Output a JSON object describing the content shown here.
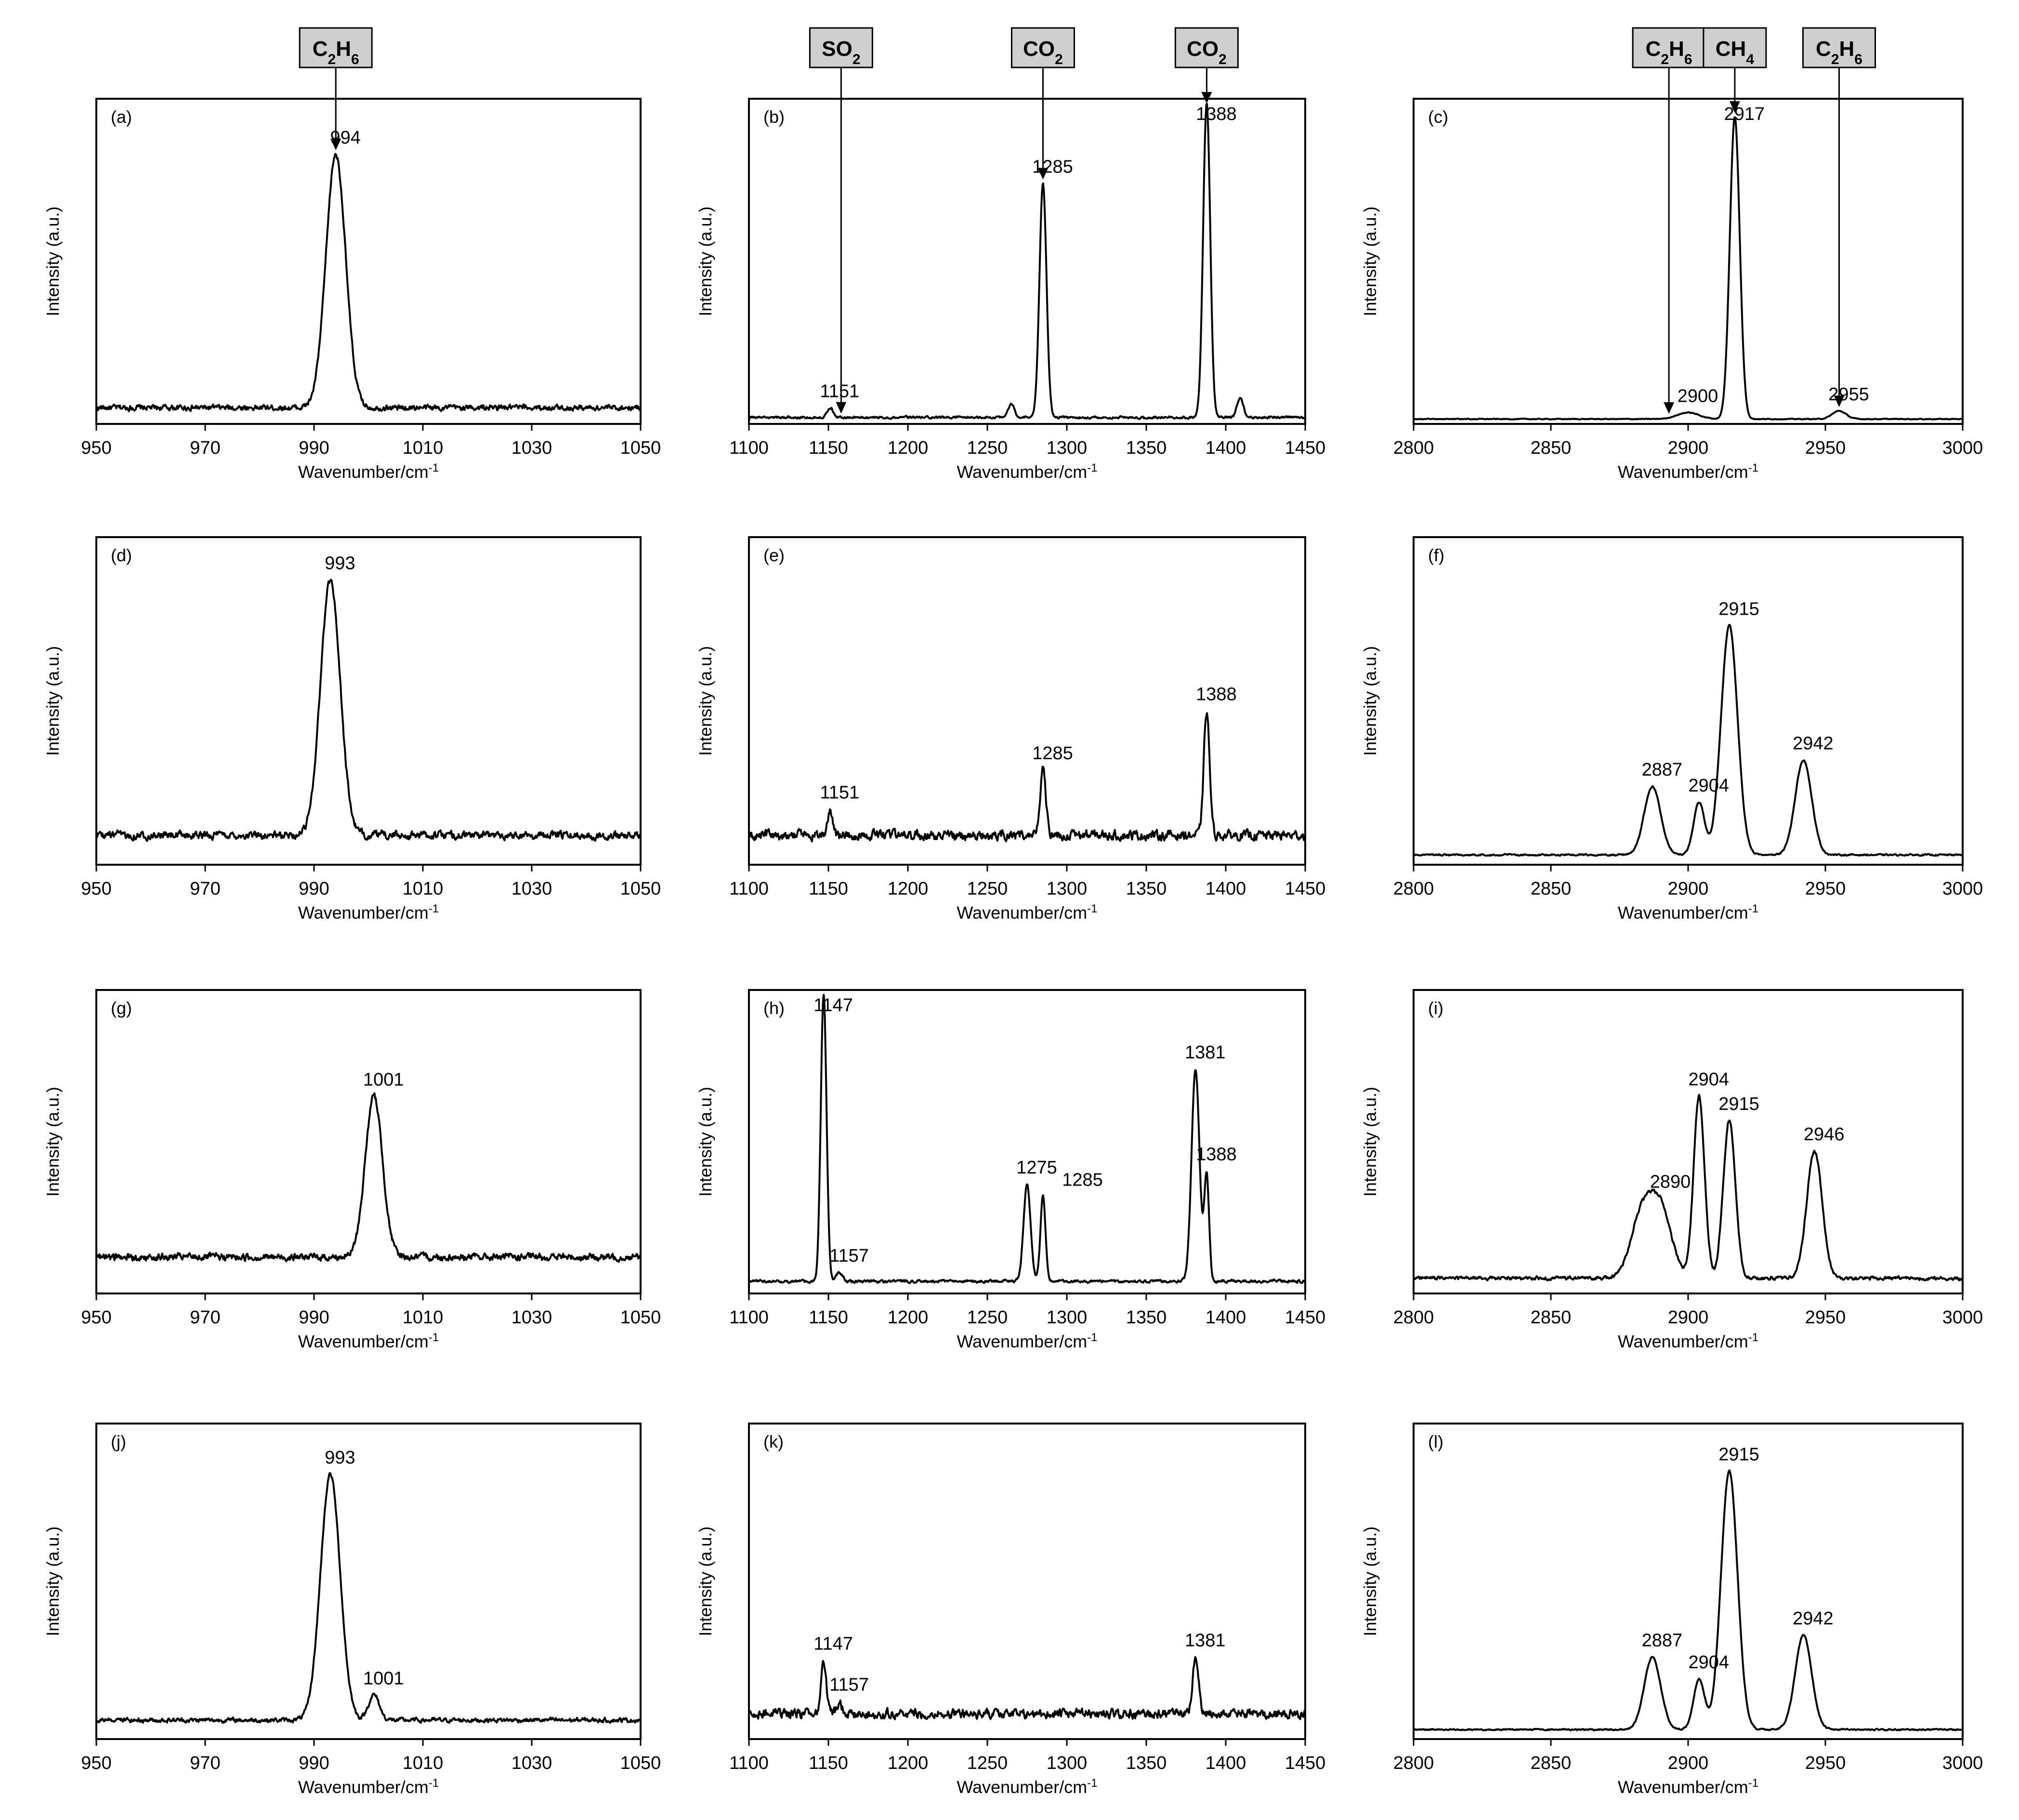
{
  "chart_data": [
    {
      "id": "a",
      "type": "line",
      "panel_label": "(a)",
      "xlim": [
        950,
        1050
      ],
      "xticks": [
        950,
        970,
        990,
        1010,
        1030,
        1050
      ],
      "xlabel": "Wavenumber/cm",
      "xlabel_sup": "-1",
      "ylabel": "Intensity (a.u.)",
      "ylim": [
        0,
        1
      ],
      "peaks": [
        {
          "x": 994,
          "h": 0.78,
          "w": 1.8
        }
      ],
      "baseline": 0.05,
      "noise": 0.015,
      "annotations": [
        {
          "x": 994,
          "label": "994"
        }
      ],
      "markers": [
        {
          "x": 994,
          "text": "C",
          "sub": "2",
          "text2": "H",
          "sub2": "6"
        }
      ]
    },
    {
      "id": "b",
      "type": "line",
      "panel_label": "(b)",
      "xlim": [
        1100,
        1450
      ],
      "xticks": [
        1100,
        1150,
        1200,
        1250,
        1300,
        1350,
        1400,
        1450
      ],
      "xlabel": "Wavenumber/cm",
      "xlabel_sup": "-1",
      "ylabel": "Intensity (a.u.)",
      "ylim": [
        0,
        1
      ],
      "peaks": [
        {
          "x": 1151,
          "h": 0.03,
          "w": 2
        },
        {
          "x": 1265,
          "h": 0.04,
          "w": 2
        },
        {
          "x": 1285,
          "h": 0.72,
          "w": 2.2
        },
        {
          "x": 1388,
          "h": 0.97,
          "w": 2.2
        },
        {
          "x": 1409,
          "h": 0.06,
          "w": 2
        }
      ],
      "baseline": 0.02,
      "noise": 0.006,
      "annotations": [
        {
          "x": 1151,
          "label": "1151"
        },
        {
          "x": 1285,
          "label": "1285"
        },
        {
          "x": 1388,
          "label": "1388"
        }
      ],
      "markers": [
        {
          "x": 1158,
          "text": "SO",
          "sub": "2"
        },
        {
          "x": 1285,
          "text": "CO",
          "sub": "2"
        },
        {
          "x": 1388,
          "text": "CO",
          "sub": "2"
        }
      ]
    },
    {
      "id": "c",
      "type": "line",
      "panel_label": "(c)",
      "xlim": [
        2800,
        3000
      ],
      "xticks": [
        2800,
        2850,
        2900,
        2950,
        3000
      ],
      "xlabel": "Wavenumber/cm",
      "xlabel_sup": "-1",
      "ylabel": "Intensity (a.u.)",
      "ylim": [
        0,
        1
      ],
      "peaks": [
        {
          "x": 2900,
          "h": 0.02,
          "w": 4
        },
        {
          "x": 2917,
          "h": 0.93,
          "w": 1.8
        },
        {
          "x": 2955,
          "h": 0.025,
          "w": 2.5
        }
      ],
      "baseline": 0.015,
      "noise": 0.002,
      "annotations": [
        {
          "x": 2900,
          "label": "2900"
        },
        {
          "x": 2917,
          "label": "2917"
        },
        {
          "x": 2955,
          "label": "2955"
        }
      ],
      "markers": [
        {
          "x": 2893,
          "text": "C",
          "sub": "2",
          "text2": "H",
          "sub2": "6"
        },
        {
          "x": 2917,
          "text": "CH",
          "sub": "4"
        },
        {
          "x": 2955,
          "text": "C",
          "sub": "2",
          "text2": "H",
          "sub2": "6"
        }
      ]
    },
    {
      "id": "d",
      "type": "line",
      "panel_label": "(d)",
      "xlim": [
        950,
        1050
      ],
      "xticks": [
        950,
        970,
        990,
        1010,
        1030,
        1050
      ],
      "xlabel": "Wavenumber/cm",
      "xlabel_sup": "-1",
      "ylabel": "Intensity (a.u.)",
      "ylim": [
        0,
        1
      ],
      "peaks": [
        {
          "x": 993,
          "h": 0.78,
          "w": 1.8
        }
      ],
      "baseline": 0.09,
      "noise": 0.02,
      "annotations": [
        {
          "x": 993,
          "label": "993"
        }
      ],
      "markers": []
    },
    {
      "id": "e",
      "type": "line",
      "panel_label": "(e)",
      "xlim": [
        1100,
        1450
      ],
      "xticks": [
        1100,
        1150,
        1200,
        1250,
        1300,
        1350,
        1400,
        1450
      ],
      "xlabel": "Wavenumber/cm",
      "xlabel_sup": "-1",
      "ylabel": "Intensity (a.u.)",
      "ylim": [
        0,
        1
      ],
      "peaks": [
        {
          "x": 1151,
          "h": 0.08,
          "w": 1.6
        },
        {
          "x": 1285,
          "h": 0.2,
          "w": 1.8
        },
        {
          "x": 1388,
          "h": 0.38,
          "w": 1.8
        }
      ],
      "baseline": 0.09,
      "noise": 0.025,
      "annotations": [
        {
          "x": 1151,
          "label": "1151"
        },
        {
          "x": 1285,
          "label": "1285"
        },
        {
          "x": 1388,
          "label": "1388"
        }
      ],
      "markers": []
    },
    {
      "id": "f",
      "type": "line",
      "panel_label": "(f)",
      "xlim": [
        2800,
        3000
      ],
      "xticks": [
        2800,
        2850,
        2900,
        2950,
        3000
      ],
      "xlabel": "Wavenumber/cm",
      "xlabel_sup": "-1",
      "ylabel": "Intensity (a.u.)",
      "ylim": [
        0,
        1
      ],
      "peaks": [
        {
          "x": 2887,
          "h": 0.21,
          "w": 3
        },
        {
          "x": 2904,
          "h": 0.16,
          "w": 2
        },
        {
          "x": 2915,
          "h": 0.7,
          "w": 3
        },
        {
          "x": 2942,
          "h": 0.29,
          "w": 3
        }
      ],
      "baseline": 0.03,
      "noise": 0.004,
      "annotations": [
        {
          "x": 2887,
          "label": "2887"
        },
        {
          "x": 2904,
          "label": "2904"
        },
        {
          "x": 2915,
          "label": "2915"
        },
        {
          "x": 2942,
          "label": "2942"
        }
      ],
      "markers": []
    },
    {
      "id": "g",
      "type": "line",
      "panel_label": "(g)",
      "xlim": [
        950,
        1050
      ],
      "xticks": [
        950,
        970,
        990,
        1010,
        1030,
        1050
      ],
      "xlabel": "Wavenumber/cm",
      "xlabel_sup": "-1",
      "ylabel": "Intensity (a.u.)",
      "ylim": [
        0,
        1
      ],
      "peaks": [
        {
          "x": 1001,
          "h": 0.53,
          "w": 1.6
        }
      ],
      "baseline": 0.12,
      "noise": 0.02,
      "annotations": [
        {
          "x": 1001,
          "label": "1001"
        }
      ],
      "markers": []
    },
    {
      "id": "h",
      "type": "line",
      "panel_label": "(h)",
      "xlim": [
        1100,
        1450
      ],
      "xticks": [
        1100,
        1150,
        1200,
        1250,
        1300,
        1350,
        1400,
        1450
      ],
      "xlabel": "Wavenumber/cm",
      "xlabel_sup": "-1",
      "ylabel": "Intensity (a.u.)",
      "ylim": [
        0,
        1
      ],
      "peaks": [
        {
          "x": 1147,
          "h": 0.95,
          "w": 1.8
        },
        {
          "x": 1157,
          "h": 0.03,
          "w": 2
        },
        {
          "x": 1275,
          "h": 0.32,
          "w": 2.2
        },
        {
          "x": 1285,
          "h": 0.28,
          "w": 1.6
        },
        {
          "x": 1381,
          "h": 0.7,
          "w": 2.5
        },
        {
          "x": 1388,
          "h": 0.35,
          "w": 1.5
        }
      ],
      "baseline": 0.04,
      "noise": 0.008,
      "annotations": [
        {
          "x": 1147,
          "label": "1147"
        },
        {
          "x": 1157,
          "label": "1157"
        },
        {
          "x": 1275,
          "label": "1275"
        },
        {
          "x": 1285,
          "label": "1285"
        },
        {
          "x": 1381,
          "label": "1381"
        },
        {
          "x": 1388,
          "label": "1388"
        }
      ],
      "markers": []
    },
    {
      "id": "i",
      "type": "line",
      "panel_label": "(i)",
      "xlim": [
        2800,
        3000
      ],
      "xticks": [
        2800,
        2850,
        2900,
        2950,
        3000
      ],
      "xlabel": "Wavenumber/cm",
      "xlabel_sup": "-1",
      "ylabel": "Intensity (a.u.)",
      "ylim": [
        0,
        1
      ],
      "peaks": [
        {
          "x": 2883,
          "h": 0.2,
          "w": 4
        },
        {
          "x": 2890,
          "h": 0.22,
          "w": 4
        },
        {
          "x": 2904,
          "h": 0.6,
          "w": 2
        },
        {
          "x": 2915,
          "h": 0.52,
          "w": 2.2
        },
        {
          "x": 2946,
          "h": 0.42,
          "w": 2.8
        }
      ],
      "baseline": 0.05,
      "noise": 0.01,
      "annotations": [
        {
          "x": 2890,
          "label": "2890"
        },
        {
          "x": 2904,
          "label": "2904"
        },
        {
          "x": 2915,
          "label": "2915"
        },
        {
          "x": 2946,
          "label": "2946"
        }
      ],
      "markers": []
    },
    {
      "id": "j",
      "type": "line",
      "panel_label": "(j)",
      "xlim": [
        950,
        1050
      ],
      "xticks": [
        950,
        970,
        990,
        1010,
        1030,
        1050
      ],
      "xlabel": "Wavenumber/cm",
      "xlabel_sup": "-1",
      "ylabel": "Intensity (a.u.)",
      "ylim": [
        0,
        1
      ],
      "peaks": [
        {
          "x": 993,
          "h": 0.78,
          "w": 1.8
        },
        {
          "x": 1001,
          "h": 0.08,
          "w": 1
        }
      ],
      "baseline": 0.06,
      "noise": 0.012,
      "annotations": [
        {
          "x": 993,
          "label": "993"
        },
        {
          "x": 1001,
          "label": "1001"
        }
      ],
      "markers": []
    },
    {
      "id": "k",
      "type": "line",
      "panel_label": "(k)",
      "xlim": [
        1100,
        1450
      ],
      "xticks": [
        1100,
        1150,
        1200,
        1250,
        1300,
        1350,
        1400,
        1450
      ],
      "xlabel": "Wavenumber/cm",
      "xlabel_sup": "-1",
      "ylabel": "Intensity (a.u.)",
      "ylim": [
        0,
        1
      ],
      "peaks": [
        {
          "x": 1147,
          "h": 0.17,
          "w": 1.6
        },
        {
          "x": 1157,
          "h": 0.04,
          "w": 1.5
        },
        {
          "x": 1381,
          "h": 0.18,
          "w": 1.8
        }
      ],
      "baseline": 0.08,
      "noise": 0.025,
      "annotations": [
        {
          "x": 1147,
          "label": "1147"
        },
        {
          "x": 1157,
          "label": "1157"
        },
        {
          "x": 1381,
          "label": "1381"
        }
      ],
      "markers": []
    },
    {
      "id": "l",
      "type": "line",
      "panel_label": "(l)",
      "xlim": [
        2800,
        3000
      ],
      "xticks": [
        2800,
        2850,
        2900,
        2950,
        3000
      ],
      "xlabel": "Wavenumber/cm",
      "xlabel_sup": "-1",
      "ylabel": "Intensity (a.u.)",
      "ylim": [
        0,
        1
      ],
      "peaks": [
        {
          "x": 2887,
          "h": 0.23,
          "w": 3
        },
        {
          "x": 2904,
          "h": 0.16,
          "w": 2
        },
        {
          "x": 2915,
          "h": 0.82,
          "w": 3
        },
        {
          "x": 2942,
          "h": 0.3,
          "w": 3
        }
      ],
      "baseline": 0.03,
      "noise": 0.004,
      "annotations": [
        {
          "x": 2887,
          "label": "2887"
        },
        {
          "x": 2904,
          "label": "2904"
        },
        {
          "x": 2915,
          "label": "2915"
        },
        {
          "x": 2942,
          "label": "2942"
        }
      ],
      "markers": []
    }
  ]
}
